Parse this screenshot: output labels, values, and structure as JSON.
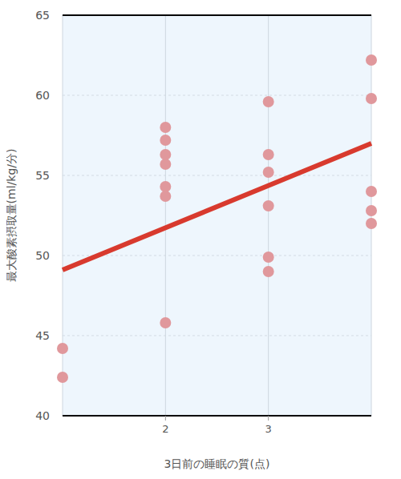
{
  "chart_data": {
    "type": "scatter",
    "x_label": "3日前の睡眠の質(点)",
    "y_label": "最大酸素摂取量(ml/kg/分)",
    "xlim": [
      1,
      4
    ],
    "xticks": [
      2,
      3
    ],
    "ylim": [
      40,
      65
    ],
    "yticks": [
      40,
      45,
      50,
      55,
      60,
      65
    ],
    "grid": true,
    "series": [
      {
        "type": "scatter",
        "marker": "circle",
        "color": "#e0989c",
        "x": [
          1,
          1,
          2,
          2,
          2,
          2,
          2,
          2,
          2,
          3,
          3,
          3,
          3,
          3,
          3,
          4,
          4,
          4,
          4,
          4
        ],
        "values": [
          44.2,
          42.4,
          58.0,
          57.2,
          56.3,
          55.7,
          54.3,
          53.7,
          45.8,
          59.6,
          56.3,
          55.2,
          53.1,
          49.9,
          49.0,
          62.2,
          59.8,
          54.0,
          52.8,
          52.0
        ]
      },
      {
        "type": "line",
        "line_style": "solid",
        "color": "#d83a2e",
        "x": [
          1,
          4
        ],
        "values": [
          49.1,
          57.0
        ]
      }
    ]
  }
}
